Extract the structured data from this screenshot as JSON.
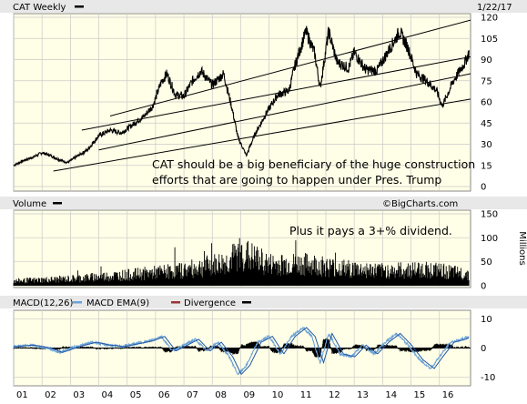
{
  "header": {
    "title": "CAT Weekly",
    "date": "1/22/17"
  },
  "annotations": {
    "main_line1": "CAT should be a big beneficiary of the huge construction",
    "main_line2": "efforts that are going to happen under Pres. Trump",
    "volume_note": "Plus it pays a 3+% dividend.",
    "credit": "©BigCharts.com"
  },
  "colors": {
    "plot_bg": "#ffffe7",
    "header_bg": "#e8e8e8",
    "grid": "#c9c9c9",
    "price_line": "#000000",
    "volume_bar": "#000000",
    "macd_line": "#6aa3d8",
    "macd_ema": "#2457a6",
    "divergence": "#9b3535",
    "hist": "#000000"
  },
  "chart_data": [
    {
      "type": "line",
      "name": "price-panel",
      "title": "CAT Weekly",
      "y_ticks": [
        0,
        15,
        30,
        45,
        60,
        75,
        90,
        105,
        120
      ],
      "ylim": [
        0,
        120
      ],
      "x_ticks": [
        "01",
        "02",
        "03",
        "04",
        "05",
        "06",
        "07",
        "08",
        "09",
        "10",
        "11",
        "12",
        "13",
        "14",
        "15",
        "16"
      ],
      "grid": true,
      "series": [
        {
          "points": [
            {
              "x": 2001.0,
              "y": 15
            },
            {
              "x": 2001.3,
              "y": 18
            },
            {
              "x": 2001.7,
              "y": 21
            },
            {
              "x": 2002.0,
              "y": 24
            },
            {
              "x": 2002.3,
              "y": 22
            },
            {
              "x": 2002.6,
              "y": 19
            },
            {
              "x": 2002.9,
              "y": 17
            },
            {
              "x": 2003.2,
              "y": 21
            },
            {
              "x": 2003.6,
              "y": 26
            },
            {
              "x": 2004.0,
              "y": 36
            },
            {
              "x": 2004.4,
              "y": 40
            },
            {
              "x": 2004.8,
              "y": 38
            },
            {
              "x": 2005.2,
              "y": 44
            },
            {
              "x": 2005.6,
              "y": 50
            },
            {
              "x": 2005.9,
              "y": 57
            },
            {
              "x": 2006.2,
              "y": 74
            },
            {
              "x": 2006.4,
              "y": 80
            },
            {
              "x": 2006.7,
              "y": 65
            },
            {
              "x": 2007.0,
              "y": 64
            },
            {
              "x": 2007.3,
              "y": 75
            },
            {
              "x": 2007.6,
              "y": 82
            },
            {
              "x": 2008.0,
              "y": 72
            },
            {
              "x": 2008.4,
              "y": 80
            },
            {
              "x": 2008.7,
              "y": 55
            },
            {
              "x": 2008.9,
              "y": 35
            },
            {
              "x": 2009.2,
              "y": 22
            },
            {
              "x": 2009.5,
              "y": 37
            },
            {
              "x": 2009.9,
              "y": 52
            },
            {
              "x": 2010.3,
              "y": 65
            },
            {
              "x": 2010.7,
              "y": 68
            },
            {
              "x": 2010.9,
              "y": 85
            },
            {
              "x": 2011.3,
              "y": 110
            },
            {
              "x": 2011.6,
              "y": 95
            },
            {
              "x": 2011.8,
              "y": 70
            },
            {
              "x": 2012.1,
              "y": 110
            },
            {
              "x": 2012.4,
              "y": 88
            },
            {
              "x": 2012.8,
              "y": 84
            },
            {
              "x": 2013.0,
              "y": 95
            },
            {
              "x": 2013.4,
              "y": 83
            },
            {
              "x": 2013.8,
              "y": 82
            },
            {
              "x": 2014.2,
              "y": 96
            },
            {
              "x": 2014.6,
              "y": 110
            },
            {
              "x": 2014.9,
              "y": 98
            },
            {
              "x": 2015.2,
              "y": 80
            },
            {
              "x": 2015.6,
              "y": 74
            },
            {
              "x": 2015.9,
              "y": 68
            },
            {
              "x": 2016.1,
              "y": 57
            },
            {
              "x": 2016.5,
              "y": 75
            },
            {
              "x": 2016.9,
              "y": 88
            },
            {
              "x": 2017.05,
              "y": 95
            }
          ]
        }
      ],
      "trendlines": [
        {
          "from": {
            "x": 2004.4,
            "y": 50
          },
          "to": {
            "x": 2017.1,
            "y": 118
          }
        },
        {
          "from": {
            "x": 2003.4,
            "y": 40
          },
          "to": {
            "x": 2017.1,
            "y": 92
          }
        },
        {
          "from": {
            "x": 2004.0,
            "y": 26
          },
          "to": {
            "x": 2017.1,
            "y": 80
          }
        },
        {
          "from": {
            "x": 2002.4,
            "y": 11
          },
          "to": {
            "x": 2017.1,
            "y": 62
          }
        }
      ]
    },
    {
      "type": "bar",
      "name": "volume-panel",
      "title": "Volume",
      "ylabel": "Millions",
      "y_ticks": [
        0,
        50,
        100,
        150
      ],
      "ylim": [
        0,
        150
      ],
      "profile": [
        {
          "x": 2001.0,
          "y": 12
        },
        {
          "x": 2003.0,
          "y": 18
        },
        {
          "x": 2005.0,
          "y": 28
        },
        {
          "x": 2007.0,
          "y": 40
        },
        {
          "x": 2008.5,
          "y": 60
        },
        {
          "x": 2009.0,
          "y": 85
        },
        {
          "x": 2010.0,
          "y": 55
        },
        {
          "x": 2011.5,
          "y": 55
        },
        {
          "x": 2012.5,
          "y": 45
        },
        {
          "x": 2014.0,
          "y": 38
        },
        {
          "x": 2015.5,
          "y": 42
        },
        {
          "x": 2017.0,
          "y": 30
        }
      ]
    },
    {
      "type": "line",
      "name": "macd-panel",
      "title": "MACD(12,26)",
      "legend": [
        "MACD(12,26)",
        "MACD EMA(9)",
        "Divergence"
      ],
      "y_ticks": [
        -10,
        0,
        10
      ],
      "ylim": [
        -12,
        12
      ],
      "x_ticks": [
        "01",
        "02",
        "03",
        "04",
        "05",
        "06",
        "07",
        "08",
        "09",
        "10",
        "11",
        "12",
        "13",
        "14",
        "15",
        "16"
      ],
      "series": [
        {
          "points": [
            {
              "x": 2001.0,
              "y": 0.5
            },
            {
              "x": 2001.6,
              "y": 1
            },
            {
              "x": 2002.2,
              "y": 0
            },
            {
              "x": 2002.6,
              "y": -1.5
            },
            {
              "x": 2003.2,
              "y": 0.5
            },
            {
              "x": 2003.8,
              "y": 2
            },
            {
              "x": 2004.3,
              "y": 1
            },
            {
              "x": 2004.8,
              "y": 0.5
            },
            {
              "x": 2005.3,
              "y": 1.5
            },
            {
              "x": 2005.8,
              "y": 2.5
            },
            {
              "x": 2006.2,
              "y": 4
            },
            {
              "x": 2006.6,
              "y": -1
            },
            {
              "x": 2007.0,
              "y": 1
            },
            {
              "x": 2007.4,
              "y": 3
            },
            {
              "x": 2007.8,
              "y": -1
            },
            {
              "x": 2008.2,
              "y": 2
            },
            {
              "x": 2008.6,
              "y": -3
            },
            {
              "x": 2008.9,
              "y": -9
            },
            {
              "x": 2009.2,
              "y": -6
            },
            {
              "x": 2009.6,
              "y": 2
            },
            {
              "x": 2010.0,
              "y": 4
            },
            {
              "x": 2010.4,
              "y": -2
            },
            {
              "x": 2010.8,
              "y": 4
            },
            {
              "x": 2011.2,
              "y": 7
            },
            {
              "x": 2011.5,
              "y": 4
            },
            {
              "x": 2011.8,
              "y": -5
            },
            {
              "x": 2012.1,
              "y": 5
            },
            {
              "x": 2012.5,
              "y": -2
            },
            {
              "x": 2012.9,
              "y": -3
            },
            {
              "x": 2013.3,
              "y": 1
            },
            {
              "x": 2013.7,
              "y": -2
            },
            {
              "x": 2014.1,
              "y": 2
            },
            {
              "x": 2014.5,
              "y": 5
            },
            {
              "x": 2014.9,
              "y": 1
            },
            {
              "x": 2015.3,
              "y": -4
            },
            {
              "x": 2015.7,
              "y": -7
            },
            {
              "x": 2016.0,
              "y": -3
            },
            {
              "x": 2016.4,
              "y": 2
            },
            {
              "x": 2016.8,
              "y": 3
            },
            {
              "x": 2017.05,
              "y": 4
            }
          ]
        }
      ]
    }
  ]
}
